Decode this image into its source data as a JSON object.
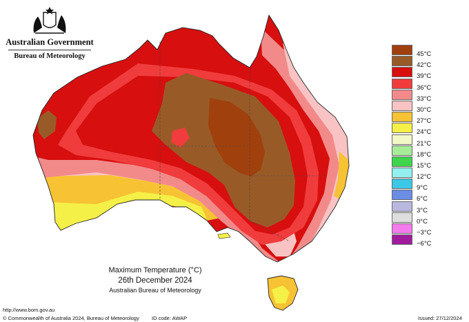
{
  "header": {
    "government": "Australian Government",
    "bureau": "Bureau of Meteorology"
  },
  "title": {
    "line1": "Maximum Temperature (°C)",
    "line2": "26th December 2024",
    "line3": "Australian Bureau of Meteorology"
  },
  "legend": [
    {
      "label": "45°C",
      "color": "#a0400d"
    },
    {
      "label": "42°C",
      "color": "#985b28"
    },
    {
      "label": "39°C",
      "color": "#d70f0f"
    },
    {
      "label": "36°C",
      "color": "#f03c3c"
    },
    {
      "label": "33°C",
      "color": "#f28a8a"
    },
    {
      "label": "30°C",
      "color": "#f9c3c3"
    },
    {
      "label": "27°C",
      "color": "#f7c234"
    },
    {
      "label": "24°C",
      "color": "#f4f047"
    },
    {
      "label": "21°C",
      "color": "#f2f9c6"
    },
    {
      "label": "18°C",
      "color": "#a6ec99"
    },
    {
      "label": "15°C",
      "color": "#3ed44b"
    },
    {
      "label": "12°C",
      "color": "#93f0ef"
    },
    {
      "label": "9°C",
      "color": "#3cc7e6"
    },
    {
      "label": "6°C",
      "color": "#6b8de3"
    },
    {
      "label": "3°C",
      "color": "#b9b9df"
    },
    {
      "label": "0°C",
      "color": "#dedede"
    },
    {
      "label": "−3°C",
      "color": "#f37bec"
    },
    {
      "label": "−6°C",
      "color": "#a01c9c"
    }
  ],
  "footer": {
    "url": "http://www.bom.gov.au",
    "copyright": "© Commonwealth of Australia 2024, Bureau of Meteorology",
    "id_code": "ID code: AWAP",
    "issued": "Issued: 27/12/2024"
  },
  "icons": {
    "crest": "coat-of-arms-icon"
  }
}
